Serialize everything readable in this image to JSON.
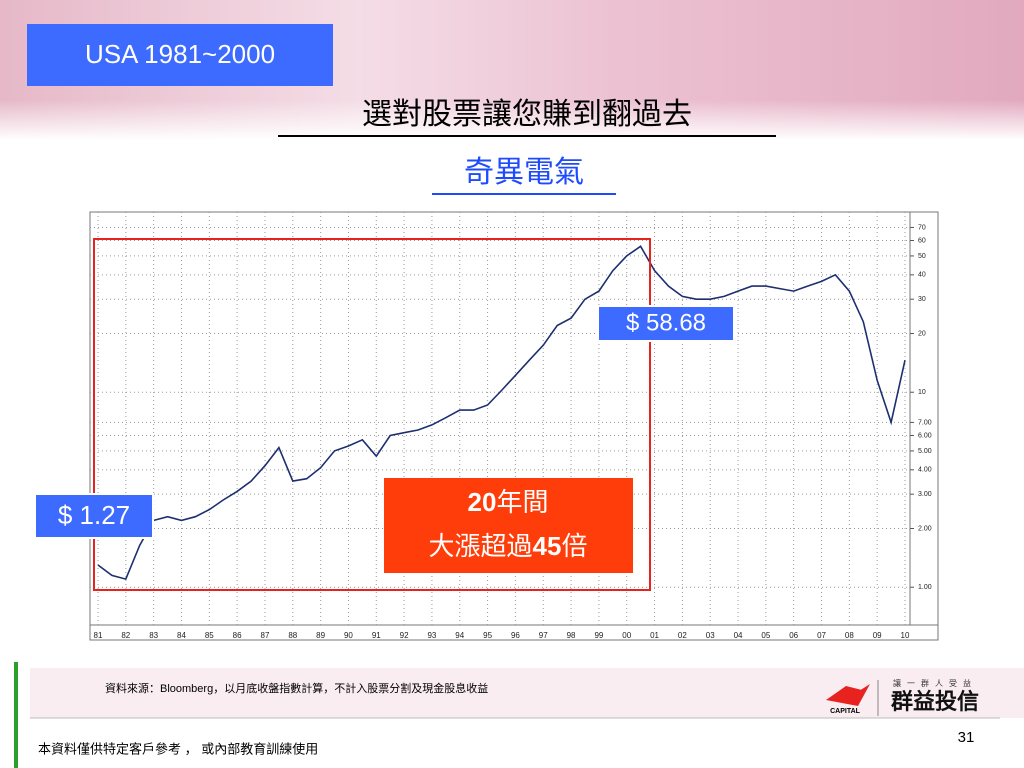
{
  "slide": {
    "tag": "USA 1981~2000",
    "title": "選對股票讓您賺到翻過去",
    "subtitle": "奇異電氣",
    "source": "資料來源：Bloomberg，以月底收盤指數計算，不計入股票分割及現金股息收益",
    "footer": "本資料僅供特定客戶參考 ， 或內部教育訓練使用",
    "page": "31",
    "logo": {
      "tagline": "讓一群人受益",
      "name": "群益投信",
      "brand": "CAPITAL"
    }
  },
  "chart_data": {
    "type": "line",
    "color": "#1c2f70",
    "log_scale": true,
    "grid": true,
    "categories": [
      "81",
      null,
      "82",
      null,
      "83",
      null,
      "84",
      null,
      "85",
      null,
      "86",
      null,
      "87",
      null,
      "88",
      null,
      "89",
      null,
      "90",
      null,
      "91",
      null,
      "92",
      null,
      "93",
      null,
      "94",
      null,
      "95",
      null,
      "96",
      null,
      "97",
      null,
      "98",
      null,
      "99",
      null,
      "00",
      null,
      "01",
      null,
      "02",
      null,
      "03",
      null,
      "04",
      null,
      "05",
      null,
      "06",
      null,
      "07",
      null,
      "08",
      null,
      "09",
      null,
      "10"
    ],
    "values": [
      1.3,
      1.15,
      1.1,
      1.64,
      2.2,
      2.3,
      2.2,
      2.3,
      2.5,
      2.8,
      3.1,
      3.5,
      4.2,
      5.2,
      3.5,
      3.6,
      4.1,
      5.0,
      5.3,
      5.7,
      4.7,
      6.0,
      6.2,
      6.4,
      6.8,
      7.4,
      8.1,
      8.1,
      8.6,
      10.2,
      12.2,
      14.6,
      17.4,
      22,
      24,
      30,
      33,
      42,
      50,
      56,
      42,
      35,
      31,
      30,
      30,
      31,
      33,
      35,
      35,
      34,
      33,
      35,
      37,
      40,
      33,
      23,
      11.5,
      7,
      14.6
    ],
    "ylim": [
      0.64,
      84
    ],
    "yticks": [
      {
        "value": 1,
        "label": "1.00"
      },
      {
        "value": 2,
        "label": "2.00"
      },
      {
        "value": 3,
        "label": "3.00"
      },
      {
        "value": 4,
        "label": "4.00"
      },
      {
        "value": 5,
        "label": "5.00"
      },
      {
        "value": 6,
        "label": "6.00"
      },
      {
        "value": 7,
        "label": "7.00"
      },
      10,
      20,
      30,
      40,
      50,
      60,
      70
    ],
    "annotations": {
      "start": "$ 1.27",
      "peak": "$ 58.68",
      "gain": [
        [
          "20",
          "年間"
        ],
        [
          "大漲超過",
          "45",
          "倍"
        ]
      ]
    }
  }
}
